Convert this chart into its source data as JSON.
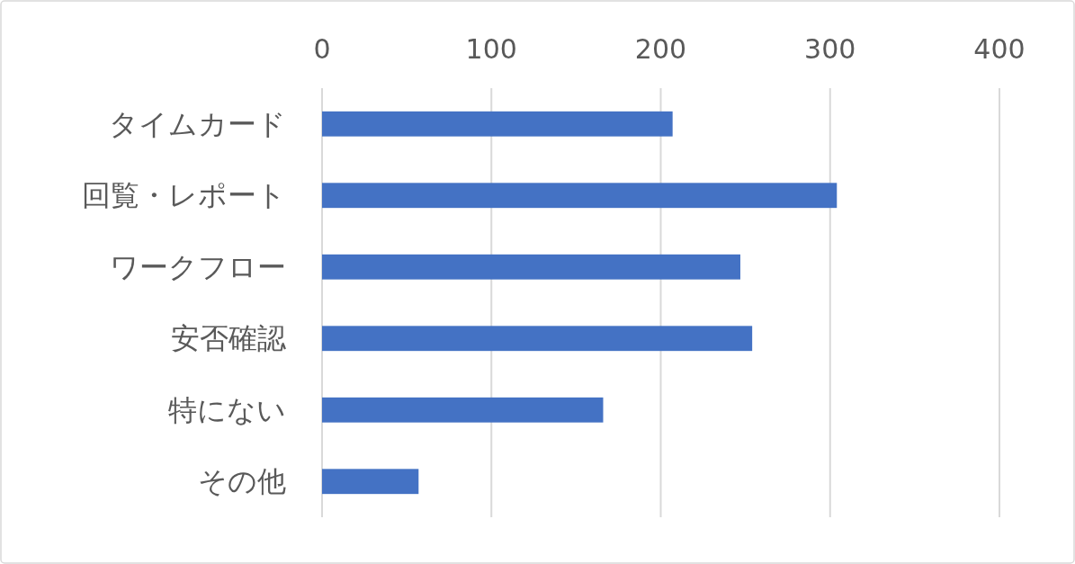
{
  "chart_data": {
    "type": "bar",
    "orientation": "horizontal",
    "categories": [
      "タイムカード",
      "回覧・レポート",
      "ワークフロー",
      "安否確認",
      "特にない",
      "その他"
    ],
    "values": [
      207,
      304,
      247,
      254,
      166,
      57
    ],
    "color": "#4472c4",
    "xlim": [
      0,
      400
    ],
    "xticks": [
      0,
      100,
      200,
      300,
      400
    ],
    "grid": "x"
  }
}
